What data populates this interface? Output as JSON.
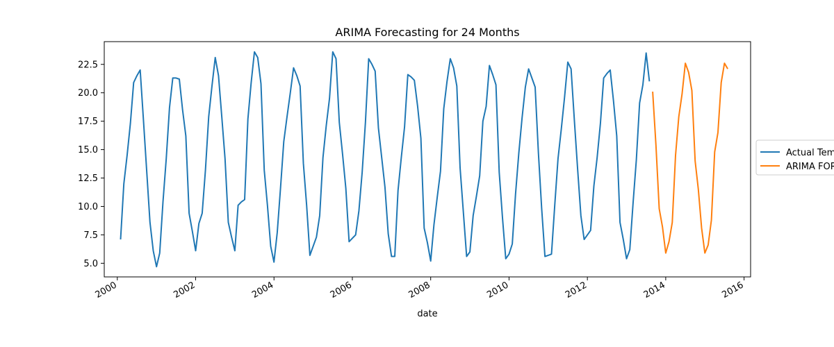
{
  "chart_data": {
    "type": "line",
    "title": "ARIMA Forecasting for 24 Months",
    "xlabel": "date",
    "ylabel": "",
    "x_ticks": [
      "2000",
      "2002",
      "2004",
      "2006",
      "2008",
      "2010",
      "2012",
      "2014",
      "2016"
    ],
    "y_ticks": [
      "5.0",
      "7.5",
      "10.0",
      "12.5",
      "15.0",
      "17.5",
      "20.0",
      "22.5"
    ],
    "ylim": [
      3.8,
      24.5
    ],
    "xlim": [
      "1999-09",
      "2016-03"
    ],
    "grid": false,
    "legend_position": "right (outside plot area)",
    "series": [
      {
        "name": "Actual Temperature",
        "color": "#1f77b4",
        "start": "2000-02",
        "values": [
          7.1,
          12.0,
          14.5,
          17.3,
          20.9,
          21.5,
          22.0,
          17.6,
          13.1,
          8.6,
          6.1,
          4.7,
          5.9,
          10.4,
          14.2,
          18.7,
          21.3,
          21.3,
          21.2,
          18.5,
          16.2,
          9.4,
          7.8,
          6.1,
          8.5,
          9.4,
          13.2,
          17.9,
          20.6,
          23.1,
          21.5,
          17.9,
          14.2,
          8.6,
          7.3,
          6.1,
          10.1,
          10.4,
          10.6,
          17.7,
          20.9,
          23.6,
          23.1,
          20.8,
          13.2,
          10.1,
          6.5,
          5.1,
          7.7,
          11.6,
          15.7,
          17.9,
          20.0,
          22.2,
          21.5,
          20.6,
          13.8,
          10.1,
          5.7,
          6.5,
          7.3,
          9.2,
          14.3,
          17.1,
          19.5,
          23.6,
          23.0,
          17.4,
          14.6,
          11.6,
          6.9,
          7.2,
          7.5,
          9.6,
          13.0,
          17.4,
          23.0,
          22.5,
          21.9,
          16.9,
          14.3,
          11.7,
          7.6,
          5.6,
          5.6,
          11.4,
          14.3,
          17.0,
          21.6,
          21.4,
          21.1,
          18.8,
          16.0,
          8.1,
          6.8,
          5.2,
          8.4,
          10.8,
          13.1,
          18.6,
          21.0,
          23.0,
          22.2,
          20.6,
          13.4,
          9.5,
          5.6,
          6.0,
          9.2,
          10.9,
          12.7,
          17.5,
          18.8,
          22.4,
          21.6,
          20.7,
          13.0,
          9.0,
          5.4,
          5.8,
          6.7,
          11.1,
          14.7,
          17.8,
          20.5,
          22.1,
          21.3,
          20.5,
          14.7,
          9.8,
          5.6,
          5.7,
          5.8,
          10.1,
          14.2,
          16.8,
          19.6,
          22.7,
          22.1,
          17.6,
          13.3,
          9.2,
          7.1,
          7.5,
          7.9,
          11.8,
          14.3,
          17.3,
          21.3,
          21.7,
          22.0,
          19.3,
          16.2,
          8.6,
          7.1,
          5.4,
          6.2,
          10.3,
          14.1,
          19.1,
          20.7,
          23.5,
          21.0
        ]
      },
      {
        "name": "ARIMA FORECAST",
        "color": "#ff7f0e",
        "start": "2013-09",
        "values": [
          20.1,
          15.4,
          9.8,
          8.2,
          5.9,
          6.9,
          8.6,
          14.5,
          17.9,
          19.9,
          22.6,
          21.8,
          20.2,
          14.0,
          11.5,
          8.1,
          5.9,
          6.6,
          8.8,
          14.8,
          16.5,
          20.9,
          22.6,
          22.1
        ]
      }
    ]
  }
}
